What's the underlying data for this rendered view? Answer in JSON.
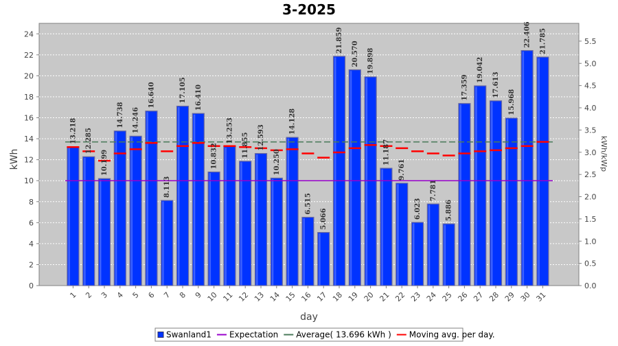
{
  "chart_data": {
    "type": "bar",
    "title": "3-2025",
    "xlabel": "day",
    "ylabel": "kWh",
    "y2label": "kWh/kWp",
    "ylim": [
      0,
      25
    ],
    "y2lim": [
      0,
      5.9
    ],
    "yticks": [
      0,
      2,
      4,
      6,
      8,
      10,
      12,
      14,
      16,
      18,
      20,
      22,
      24
    ],
    "y2ticks": [
      "0.0",
      "0.5",
      "1.0",
      "1.5",
      "2.0",
      "2.5",
      "3.0",
      "3.5",
      "4.0",
      "4.5",
      "5.0",
      "5.5"
    ],
    "grid": true,
    "legend_position": "bottom",
    "categories": [
      "1",
      "2",
      "3",
      "4",
      "5",
      "6",
      "7",
      "8",
      "9",
      "10",
      "11",
      "12",
      "13",
      "14",
      "15",
      "16",
      "17",
      "18",
      "19",
      "20",
      "21",
      "22",
      "23",
      "24",
      "25",
      "26",
      "27",
      "28",
      "29",
      "30",
      "31"
    ],
    "series": [
      {
        "name": "Swanland1",
        "kind": "bar",
        "color": "#0033ff",
        "values": [
          13.218,
          12.285,
          10.199,
          14.738,
          14.246,
          16.64,
          8.113,
          17.105,
          16.41,
          10.832,
          13.253,
          11.855,
          12.593,
          10.25,
          14.128,
          6.515,
          5.066,
          21.859,
          20.57,
          19.898,
          11.187,
          9.761,
          6.023,
          7.781,
          5.886,
          17.359,
          19.042,
          17.613,
          15.968,
          22.406,
          21.785
        ],
        "labels": [
          "13.218",
          "12.285",
          "10.199",
          "14.738",
          "14.246",
          "16.640",
          "8.113",
          "17.105",
          "16.410",
          "10.832",
          "13.253",
          "11.855",
          "12.593",
          "10.250",
          "14.128",
          "6.515",
          "5.066",
          "21.859",
          "20.570",
          "19.898",
          "11.187",
          "9.761",
          "6.023",
          "7.781",
          "5.886",
          "17.359",
          "19.042",
          "17.613",
          "15.968",
          "22.406",
          "21.785"
        ]
      },
      {
        "name": "Expectation",
        "kind": "hline",
        "color": "#9900cc",
        "value": 10.0
      },
      {
        "name": "Average( 13.696 kWh )",
        "kind": "hline",
        "color": "#4a7a5a",
        "value": 13.696
      },
      {
        "name": "Moving avg. per day.",
        "kind": "step",
        "color": "#ff0000",
        "values": [
          13.2,
          12.8,
          11.9,
          12.6,
          13.0,
          13.6,
          12.8,
          13.3,
          13.6,
          13.3,
          13.3,
          13.2,
          13.1,
          12.9,
          13.0,
          12.6,
          12.2,
          12.7,
          13.1,
          13.4,
          13.3,
          13.1,
          12.8,
          12.6,
          12.4,
          12.6,
          12.8,
          12.9,
          13.1,
          13.3,
          13.7
        ]
      }
    ]
  }
}
